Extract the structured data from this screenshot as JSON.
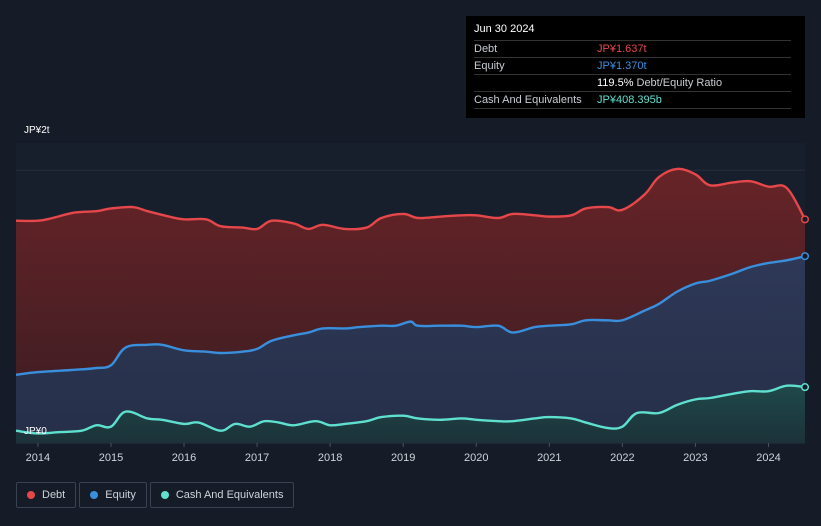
{
  "tooltip": {
    "date": "Jun 30 2024",
    "debt_label": "Debt",
    "debt_value": "JP¥1.637t",
    "equity_label": "Equity",
    "equity_value": "JP¥1.370t",
    "ratio_value": "119.5%",
    "ratio_label": "Debt/Equity Ratio",
    "cash_label": "Cash And Equivalents",
    "cash_value": "JP¥408.395b"
  },
  "legend": {
    "debt": "Debt",
    "equity": "Equity",
    "cash": "Cash And Equivalents"
  },
  "colors": {
    "debt": "#e5474b",
    "equity": "#3a8fdd",
    "cash": "#5fe0cf",
    "background": "#151b27"
  },
  "chart_data": {
    "type": "area",
    "title": "",
    "xlabel": "",
    "ylabel": "",
    "y_unit": "JP¥ trillion",
    "ylim": [
      0,
      2.2
    ],
    "y_tick_labels": [
      "JP¥0",
      "JP¥2t"
    ],
    "x_tick_labels": [
      "2014",
      "2015",
      "2016",
      "2017",
      "2018",
      "2019",
      "2020",
      "2021",
      "2022",
      "2023",
      "2024"
    ],
    "x_range": [
      2013.7,
      2024.5
    ],
    "series": [
      {
        "name": "Debt",
        "x": [
          2013.7,
          2014.0,
          2014.2,
          2014.5,
          2014.8,
          2015.0,
          2015.3,
          2015.5,
          2015.8,
          2016.0,
          2016.3,
          2016.5,
          2016.8,
          2017.0,
          2017.2,
          2017.5,
          2017.7,
          2017.9,
          2018.2,
          2018.5,
          2018.7,
          2019.0,
          2019.2,
          2019.5,
          2019.8,
          2020.0,
          2020.3,
          2020.5,
          2020.8,
          2021.0,
          2021.3,
          2021.5,
          2021.8,
          2022.0,
          2022.3,
          2022.5,
          2022.75,
          2023.0,
          2023.2,
          2023.5,
          2023.75,
          2024.0,
          2024.25,
          2024.5
        ],
        "values": [
          1.63,
          1.63,
          1.65,
          1.69,
          1.7,
          1.72,
          1.73,
          1.7,
          1.66,
          1.64,
          1.64,
          1.59,
          1.58,
          1.57,
          1.63,
          1.61,
          1.57,
          1.6,
          1.57,
          1.58,
          1.65,
          1.68,
          1.65,
          1.66,
          1.67,
          1.67,
          1.65,
          1.68,
          1.67,
          1.66,
          1.67,
          1.72,
          1.73,
          1.71,
          1.82,
          1.95,
          2.01,
          1.97,
          1.89,
          1.91,
          1.92,
          1.88,
          1.87,
          1.64
        ]
      },
      {
        "name": "Equity",
        "x": [
          2013.7,
          2014.0,
          2014.3,
          2014.6,
          2014.8,
          2015.0,
          2015.2,
          2015.5,
          2015.7,
          2016.0,
          2016.3,
          2016.5,
          2016.8,
          2017.0,
          2017.2,
          2017.5,
          2017.7,
          2017.9,
          2018.2,
          2018.4,
          2018.7,
          2018.9,
          2019.1,
          2019.2,
          2019.5,
          2019.8,
          2020.0,
          2020.3,
          2020.5,
          2020.8,
          2021.0,
          2021.3,
          2021.5,
          2021.8,
          2022.0,
          2022.3,
          2022.5,
          2022.75,
          2023.0,
          2023.2,
          2023.5,
          2023.75,
          2024.0,
          2024.25,
          2024.5
        ],
        "values": [
          0.5,
          0.52,
          0.53,
          0.54,
          0.55,
          0.57,
          0.7,
          0.72,
          0.72,
          0.68,
          0.67,
          0.66,
          0.67,
          0.69,
          0.75,
          0.79,
          0.81,
          0.84,
          0.84,
          0.85,
          0.86,
          0.86,
          0.89,
          0.86,
          0.86,
          0.86,
          0.85,
          0.86,
          0.81,
          0.85,
          0.86,
          0.87,
          0.9,
          0.9,
          0.9,
          0.97,
          1.02,
          1.11,
          1.17,
          1.19,
          1.24,
          1.29,
          1.32,
          1.34,
          1.37
        ]
      },
      {
        "name": "Cash And Equivalents",
        "x": [
          2013.7,
          2014.0,
          2014.3,
          2014.6,
          2014.8,
          2015.0,
          2015.2,
          2015.5,
          2015.7,
          2016.0,
          2016.2,
          2016.5,
          2016.7,
          2016.9,
          2017.1,
          2017.3,
          2017.5,
          2017.8,
          2018.0,
          2018.2,
          2018.5,
          2018.7,
          2019.0,
          2019.2,
          2019.5,
          2019.8,
          2020.0,
          2020.3,
          2020.5,
          2020.8,
          2021.0,
          2021.3,
          2021.5,
          2021.8,
          2022.0,
          2022.2,
          2022.5,
          2022.75,
          2023.0,
          2023.2,
          2023.5,
          2023.75,
          2024.0,
          2024.25,
          2024.5
        ],
        "values": [
          0.09,
          0.07,
          0.08,
          0.09,
          0.13,
          0.12,
          0.23,
          0.18,
          0.17,
          0.14,
          0.15,
          0.09,
          0.14,
          0.12,
          0.16,
          0.15,
          0.13,
          0.16,
          0.13,
          0.14,
          0.16,
          0.19,
          0.2,
          0.18,
          0.17,
          0.18,
          0.17,
          0.16,
          0.16,
          0.18,
          0.19,
          0.18,
          0.15,
          0.11,
          0.12,
          0.22,
          0.22,
          0.28,
          0.32,
          0.33,
          0.36,
          0.38,
          0.38,
          0.42,
          0.41
        ]
      }
    ]
  }
}
